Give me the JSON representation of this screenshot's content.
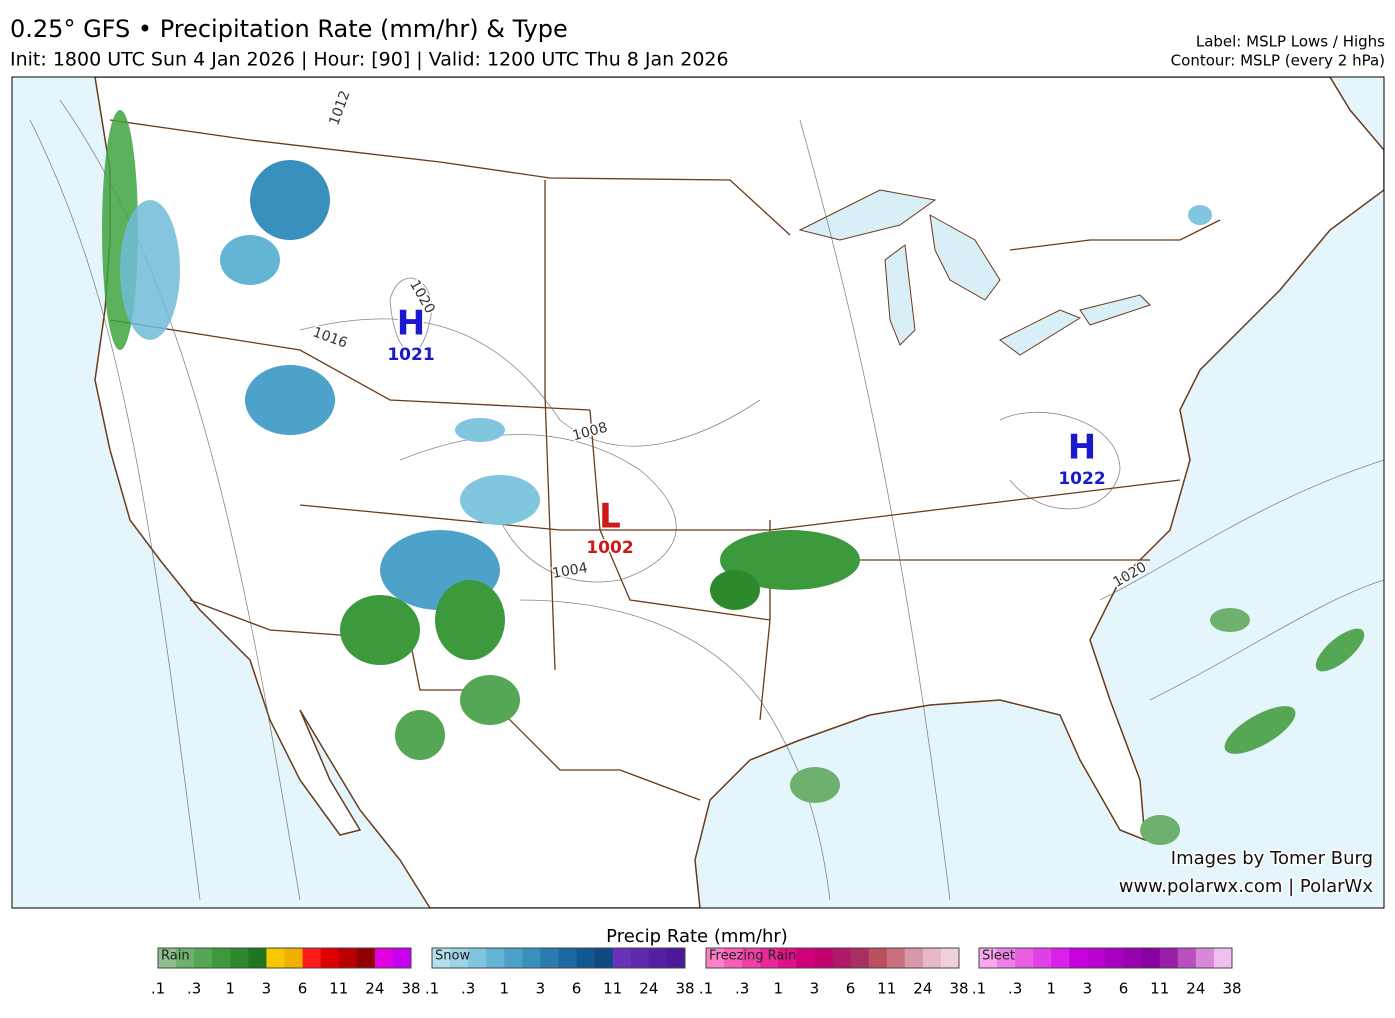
{
  "header": {
    "title": "0.25° GFS • Precipitation Rate (mm/hr) & Type",
    "subtitle": "Init: 1800 UTC Sun 4 Jan 2026 | Hour: [90] | Valid: 1200 UTC Thu 8 Jan 2026",
    "notes": [
      "Label: MSLP Lows / Highs",
      "Contour: MSLP (every 2 hPa)"
    ]
  },
  "map": {
    "centers": [
      {
        "letter": "H",
        "pressure": "1021"
      },
      {
        "letter": "H",
        "pressure": "1022"
      },
      {
        "letter": "L",
        "pressure": "1002"
      }
    ],
    "contour_labels": [
      "1012",
      "1016",
      "1020",
      "1008",
      "1004",
      "1020"
    ]
  },
  "credits": [
    "Images by Tomer Burg",
    "www.polarwx.com | PolarWx"
  ],
  "legend": {
    "title": "Precip Rate (mm/hr)",
    "groups": [
      {
        "name": "Rain",
        "colors": [
          "#8cbf8c",
          "#6eb06e",
          "#55a655",
          "#3c9a3c",
          "#2c8a2c",
          "#207520",
          "#f5c800",
          "#f0b000",
          "#ff1a1a",
          "#e00000",
          "#b80000",
          "#900000",
          "#e000e0",
          "#c800f0"
        ],
        "ticks": [
          ".1",
          ".3",
          "1",
          "3",
          "6",
          "11",
          "24",
          "38"
        ]
      },
      {
        "name": "Snow",
        "colors": [
          "#b4e0ee",
          "#9ad4e6",
          "#80c6de",
          "#64b4d4",
          "#4ca2c8",
          "#3a90bc",
          "#2a7cae",
          "#1c68a0",
          "#125890",
          "#0c4a80",
          "#6a30b8",
          "#5e28ac",
          "#5420a2",
          "#4a1898"
        ],
        "ticks": [
          ".1",
          ".3",
          "1",
          "3",
          "6",
          "11",
          "24",
          "38"
        ]
      },
      {
        "name": "Freezing Rain",
        "colors": [
          "#ff80c8",
          "#f860b8",
          "#f040a8",
          "#e82898",
          "#e01088",
          "#d0007a",
          "#c0006e",
          "#b01868",
          "#a83060",
          "#b8505e",
          "#c87080",
          "#d898a8",
          "#e8b8c8",
          "#f0d0dc"
        ],
        "ticks": [
          ".1",
          ".3",
          "1",
          "3",
          "6",
          "11",
          "24",
          "38"
        ]
      },
      {
        "name": "Sleet",
        "colors": [
          "#f8a8f0",
          "#f080e8",
          "#e860e0",
          "#e040e8",
          "#d820e8",
          "#c800e0",
          "#b800d0",
          "#a800c0",
          "#9800b0",
          "#8800a0",
          "#9820a8",
          "#b850c0",
          "#d888d8",
          "#f0c0f0"
        ],
        "ticks": [
          ".1",
          ".3",
          "1",
          "3",
          "6",
          "11",
          "24",
          "38"
        ]
      }
    ]
  }
}
